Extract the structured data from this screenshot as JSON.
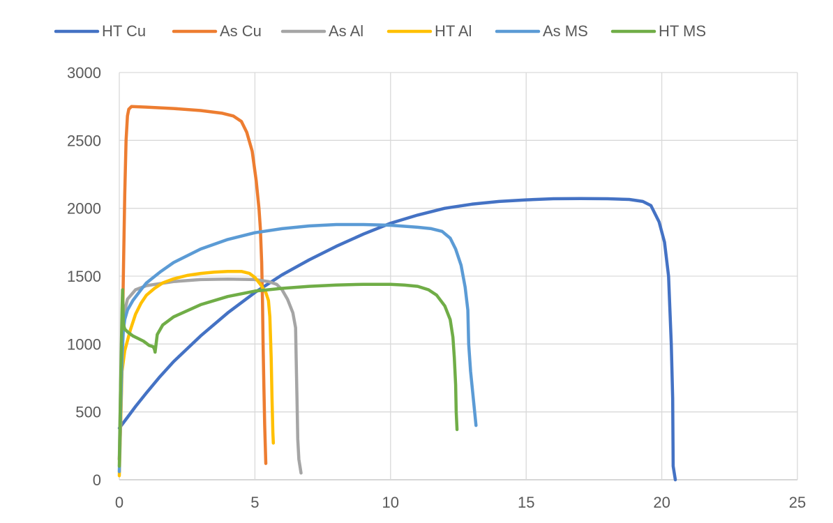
{
  "chart_data": {
    "type": "line",
    "title": "",
    "xlabel": "",
    "ylabel": "",
    "xlim": [
      0,
      25
    ],
    "ylim": [
      0,
      3000
    ],
    "x_ticks": [
      "0",
      "5",
      "10",
      "15",
      "20",
      "25"
    ],
    "y_ticks": [
      "0",
      "500",
      "1000",
      "1500",
      "2000",
      "2500",
      "3000"
    ],
    "grid": true,
    "legend_position": "top",
    "series": [
      {
        "name": "HT Cu",
        "color": "#4472C4",
        "points": [
          [
            0,
            380
          ],
          [
            0.3,
            460
          ],
          [
            0.6,
            540
          ],
          [
            1,
            640
          ],
          [
            1.5,
            760
          ],
          [
            2,
            870
          ],
          [
            3,
            1060
          ],
          [
            4,
            1230
          ],
          [
            5,
            1380
          ],
          [
            6,
            1510
          ],
          [
            7,
            1620
          ],
          [
            8,
            1720
          ],
          [
            9,
            1810
          ],
          [
            10,
            1890
          ],
          [
            11,
            1950
          ],
          [
            12,
            2000
          ],
          [
            13,
            2030
          ],
          [
            14,
            2050
          ],
          [
            15,
            2062
          ],
          [
            16,
            2070
          ],
          [
            17,
            2072
          ],
          [
            18,
            2070
          ],
          [
            18.8,
            2065
          ],
          [
            19.3,
            2050
          ],
          [
            19.6,
            2020
          ],
          [
            19.9,
            1900
          ],
          [
            20.1,
            1750
          ],
          [
            20.25,
            1500
          ],
          [
            20.35,
            1000
          ],
          [
            20.4,
            600
          ],
          [
            20.42,
            100
          ],
          [
            20.5,
            0
          ]
        ]
      },
      {
        "name": "As Cu",
        "color": "#ED7D31",
        "points": [
          [
            0,
            150
          ],
          [
            0.05,
            400
          ],
          [
            0.1,
            900
          ],
          [
            0.15,
            1500
          ],
          [
            0.2,
            2100
          ],
          [
            0.25,
            2500
          ],
          [
            0.3,
            2680
          ],
          [
            0.35,
            2730
          ],
          [
            0.45,
            2750
          ],
          [
            1,
            2745
          ],
          [
            2,
            2735
          ],
          [
            3,
            2720
          ],
          [
            3.8,
            2700
          ],
          [
            4.2,
            2680
          ],
          [
            4.5,
            2640
          ],
          [
            4.7,
            2560
          ],
          [
            4.9,
            2420
          ],
          [
            5.05,
            2200
          ],
          [
            5.15,
            2000
          ],
          [
            5.2,
            1850
          ],
          [
            5.25,
            1600
          ],
          [
            5.28,
            1300
          ],
          [
            5.3,
            1000
          ],
          [
            5.33,
            700
          ],
          [
            5.36,
            400
          ],
          [
            5.4,
            120
          ]
        ]
      },
      {
        "name": "As Al",
        "color": "#A5A5A5",
        "points": [
          [
            0,
            150
          ],
          [
            0.05,
            700
          ],
          [
            0.1,
            1050
          ],
          [
            0.15,
            1200
          ],
          [
            0.3,
            1330
          ],
          [
            0.6,
            1400
          ],
          [
            1,
            1430
          ],
          [
            2,
            1460
          ],
          [
            3,
            1475
          ],
          [
            4,
            1478
          ],
          [
            5,
            1475
          ],
          [
            5.5,
            1460
          ],
          [
            5.8,
            1440
          ],
          [
            6,
            1400
          ],
          [
            6.2,
            1330
          ],
          [
            6.4,
            1230
          ],
          [
            6.5,
            1120
          ],
          [
            6.52,
            900
          ],
          [
            6.55,
            600
          ],
          [
            6.58,
            300
          ],
          [
            6.62,
            150
          ],
          [
            6.7,
            50
          ]
        ]
      },
      {
        "name": "HT Al",
        "color": "#FFC000",
        "points": [
          [
            0,
            30
          ],
          [
            0.05,
            400
          ],
          [
            0.1,
            800
          ],
          [
            0.2,
            950
          ],
          [
            0.4,
            1100
          ],
          [
            0.6,
            1220
          ],
          [
            0.8,
            1300
          ],
          [
            1,
            1360
          ],
          [
            1.3,
            1410
          ],
          [
            1.6,
            1450
          ],
          [
            2,
            1480
          ],
          [
            2.5,
            1505
          ],
          [
            3,
            1520
          ],
          [
            3.5,
            1530
          ],
          [
            4,
            1535
          ],
          [
            4.5,
            1535
          ],
          [
            4.8,
            1520
          ],
          [
            5,
            1490
          ],
          [
            5.2,
            1440
          ],
          [
            5.4,
            1380
          ],
          [
            5.5,
            1320
          ],
          [
            5.55,
            1200
          ],
          [
            5.6,
            900
          ],
          [
            5.63,
            600
          ],
          [
            5.66,
            350
          ],
          [
            5.68,
            270
          ]
        ]
      },
      {
        "name": "As MS",
        "color": "#5B9BD5",
        "points": [
          [
            0,
            60
          ],
          [
            0.05,
            500
          ],
          [
            0.1,
            900
          ],
          [
            0.15,
            1100
          ],
          [
            0.2,
            1180
          ],
          [
            0.3,
            1250
          ],
          [
            0.5,
            1320
          ],
          [
            0.8,
            1400
          ],
          [
            1,
            1450
          ],
          [
            1.5,
            1530
          ],
          [
            2,
            1600
          ],
          [
            3,
            1700
          ],
          [
            4,
            1770
          ],
          [
            5,
            1820
          ],
          [
            6,
            1850
          ],
          [
            7,
            1870
          ],
          [
            8,
            1880
          ],
          [
            9,
            1880
          ],
          [
            10,
            1875
          ],
          [
            11,
            1860
          ],
          [
            11.5,
            1850
          ],
          [
            11.9,
            1830
          ],
          [
            12.2,
            1780
          ],
          [
            12.4,
            1700
          ],
          [
            12.6,
            1580
          ],
          [
            12.75,
            1420
          ],
          [
            12.85,
            1250
          ],
          [
            12.88,
            1000
          ],
          [
            12.95,
            800
          ],
          [
            13.05,
            600
          ],
          [
            13.15,
            400
          ]
        ]
      },
      {
        "name": "HT MS",
        "color": "#70AD47",
        "points": [
          [
            0,
            100
          ],
          [
            0.05,
            700
          ],
          [
            0.1,
            1250
          ],
          [
            0.12,
            1400
          ],
          [
            0.15,
            1150
          ],
          [
            0.2,
            1110
          ],
          [
            0.3,
            1090
          ],
          [
            0.5,
            1060
          ],
          [
            0.7,
            1040
          ],
          [
            0.9,
            1020
          ],
          [
            1.1,
            990
          ],
          [
            1.25,
            980
          ],
          [
            1.3,
            960
          ],
          [
            1.32,
            940
          ],
          [
            1.4,
            1070
          ],
          [
            1.6,
            1140
          ],
          [
            2,
            1200
          ],
          [
            3,
            1290
          ],
          [
            4,
            1350
          ],
          [
            5,
            1390
          ],
          [
            6,
            1410
          ],
          [
            7,
            1425
          ],
          [
            8,
            1435
          ],
          [
            9,
            1440
          ],
          [
            10,
            1440
          ],
          [
            10.5,
            1435
          ],
          [
            11,
            1425
          ],
          [
            11.4,
            1400
          ],
          [
            11.7,
            1360
          ],
          [
            12,
            1280
          ],
          [
            12.2,
            1180
          ],
          [
            12.3,
            1050
          ],
          [
            12.35,
            900
          ],
          [
            12.4,
            700
          ],
          [
            12.42,
            500
          ],
          [
            12.45,
            370
          ]
        ]
      }
    ]
  }
}
